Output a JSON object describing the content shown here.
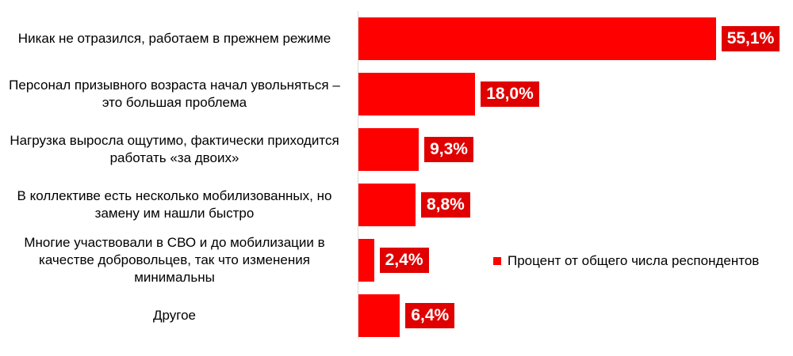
{
  "colors": {
    "bar": "#ff0000",
    "label_bg": "#e00000"
  },
  "chart_data": {
    "type": "bar",
    "orientation": "horizontal",
    "categories": [
      "Никак не отразился, работаем в прежнем режиме",
      "Персонал призывного возраста начал увольняться – это большая проблема",
      "Нагрузка выросла ощутимо, фактически приходится работать «за двоих»",
      "В коллективе есть несколько мобилизованных, но замену им нашли быстро",
      "Многие участвовали в СВО и до мобилизации в качестве добровольцев, так что изменения минимальны",
      "Другое"
    ],
    "values": [
      55.1,
      18.0,
      9.3,
      8.8,
      2.4,
      6.4
    ],
    "value_labels": [
      "55,1%",
      "18,0%",
      "9,3%",
      "8,8%",
      "2,4%",
      "6,4%"
    ],
    "series_name": "Процент от общего числа респондентов",
    "legend_position": "right",
    "xlim": [
      0,
      56
    ]
  }
}
